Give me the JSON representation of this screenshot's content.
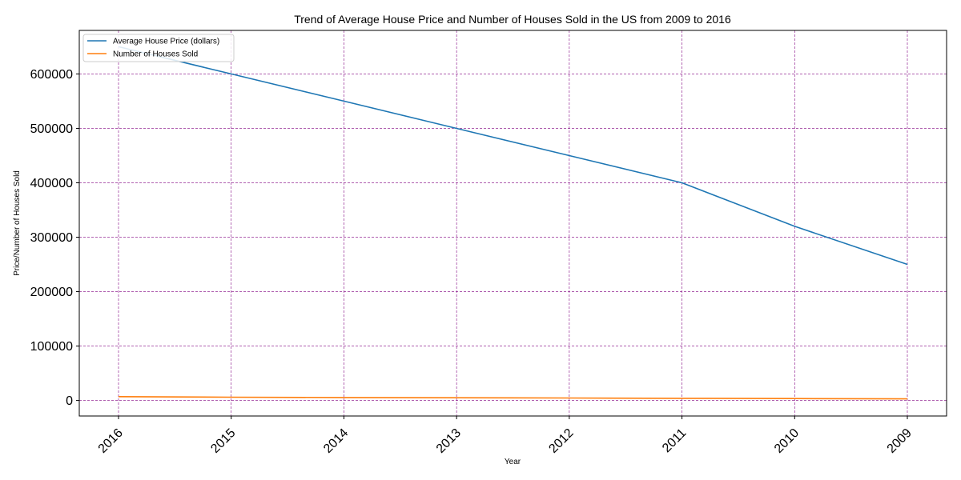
{
  "chart_data": {
    "type": "line",
    "title": "Trend of Average House Price and Number of Houses Sold in the US from 2009 to 2016",
    "xlabel": "Year",
    "ylabel": "Price/Number of Houses Sold",
    "categories": [
      "2016",
      "2015",
      "2014",
      "2013",
      "2012",
      "2011",
      "2010",
      "2009"
    ],
    "series": [
      {
        "name": "Average House Price (dollars)",
        "color": "#1f77b4",
        "values": [
          650000,
          600000,
          550000,
          500000,
          450000,
          400000,
          320000,
          250000
        ]
      },
      {
        "name": "Number of Houses Sold",
        "color": "#ff7f0e",
        "values": [
          7000,
          6000,
          5500,
          5000,
          4500,
          4000,
          3500,
          3000
        ]
      }
    ],
    "ylim": [
      -28500,
      680000
    ],
    "yticks": [
      0,
      100000,
      200000,
      300000,
      400000,
      500000,
      600000
    ],
    "ytick_labels": [
      "0",
      "100000",
      "200000",
      "300000",
      "400000",
      "500000",
      "600000"
    ],
    "grid": true,
    "grid_color": "#800080",
    "legend_position": "top-left"
  }
}
